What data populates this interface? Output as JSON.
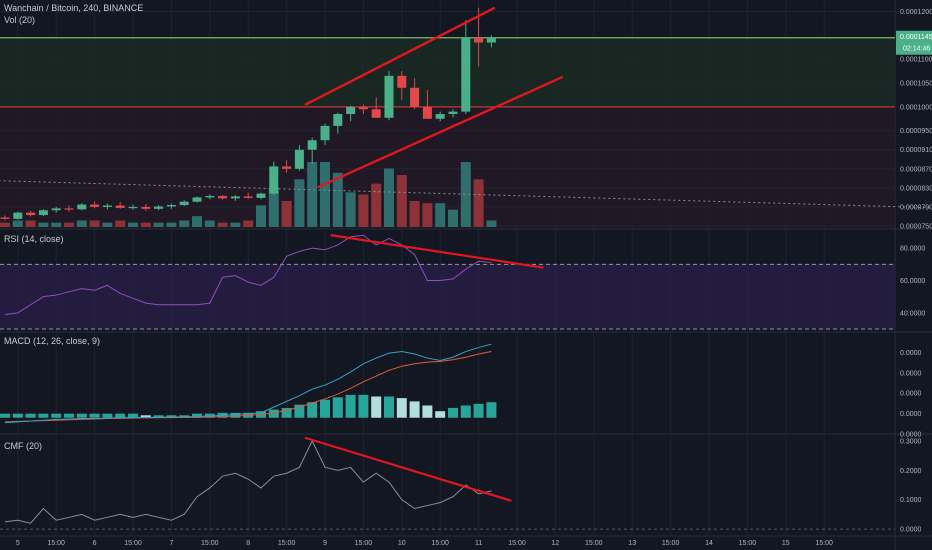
{
  "header": {
    "symbol_title": "Wanchain / Bitcoin, 240, BINANCE",
    "vol_title": "Vol (20)"
  },
  "colors": {
    "background": "#131722",
    "grid": "#1f2430",
    "bull": "#4bb08a",
    "bear": "#e2474b",
    "vol_bull": "#2f6e6c",
    "vol_bear": "#8e3239",
    "trendline": "#e0171d",
    "resistance": "#7cb86a",
    "support": "#c0373d",
    "rsi": "#8e4fbf",
    "rsi_band": "#2a1f4a",
    "macd_line": "#2fa3c7",
    "signal_line": "#e05b3a",
    "hist_pos": "#26a69a",
    "hist_neg_fade": "#b2dfdb",
    "cmf": "#8c8f94",
    "price_tag_bg": "#4bb08a",
    "price_tag_text": "#ffffff"
  },
  "price_axis": {
    "labels": [
      "0.0001200",
      "0.0001100",
      "0.0001050",
      "0.0001000",
      "0.0000950",
      "0.0000910",
      "0.0000870",
      "0.0000830",
      "0.0000790",
      "0.0000750"
    ],
    "current_price": "0.0001145",
    "countdown": "02:14:46"
  },
  "rsi": {
    "title": "RSI (14, close)",
    "axis_labels": [
      "80.0000",
      "60.0000",
      "40.0000"
    ],
    "ylim": [
      30,
      90
    ],
    "bands": [
      70,
      30
    ]
  },
  "macd": {
    "title": "MACD (12, 26, close, 9)",
    "axis_labels": [
      "0.0000",
      "0.0000",
      "0.0000",
      "0.0000",
      "0.0000"
    ],
    "ylim": [
      -1.5,
      10
    ]
  },
  "cmf": {
    "title": "CMF (20)",
    "axis_labels": [
      "0.3000",
      "0.2000",
      "0.1000",
      "0.0000"
    ],
    "ylim": [
      -0.01,
      0.31
    ]
  },
  "time_axis": [
    {
      "label": "5",
      "i": 1
    },
    {
      "label": "15:00",
      "i": 4
    },
    {
      "label": "6",
      "i": 7
    },
    {
      "label": "15:00",
      "i": 10
    },
    {
      "label": "7",
      "i": 13
    },
    {
      "label": "15:00",
      "i": 16
    },
    {
      "label": "8",
      "i": 19
    },
    {
      "label": "15:00",
      "i": 22
    },
    {
      "label": "9",
      "i": 25
    },
    {
      "label": "15:00",
      "i": 28
    },
    {
      "label": "10",
      "i": 31
    },
    {
      "label": "15:00",
      "i": 34
    },
    {
      "label": "11",
      "i": 37
    },
    {
      "label": "15:00",
      "i": 40
    },
    {
      "label": "12",
      "i": 43
    },
    {
      "label": "15:00",
      "i": 46
    },
    {
      "label": "13",
      "i": 49
    },
    {
      "label": "15:00",
      "i": 52
    },
    {
      "label": "14",
      "i": 55
    },
    {
      "label": "15:00",
      "i": 58
    },
    {
      "label": "15",
      "i": 61
    },
    {
      "label": "15:00",
      "i": 64
    }
  ],
  "chart_data": {
    "type": "candlestick",
    "title": "Wanchain / Bitcoin, 240, BINANCE",
    "ylim": [
      7.5e-05,
      0.000122
    ],
    "candles": [
      {
        "o": 7.68e-05,
        "h": 7.72e-05,
        "l": 7.62e-05,
        "c": 7.65e-05,
        "v": 2
      },
      {
        "o": 7.65e-05,
        "h": 7.8e-05,
        "l": 7.63e-05,
        "c": 7.78e-05,
        "v": 3
      },
      {
        "o": 7.78e-05,
        "h": 7.82e-05,
        "l": 7.7e-05,
        "c": 7.73e-05,
        "v": 3
      },
      {
        "o": 7.73e-05,
        "h": 7.85e-05,
        "l": 7.71e-05,
        "c": 7.83e-05,
        "v": 2
      },
      {
        "o": 7.83e-05,
        "h": 7.9e-05,
        "l": 7.78e-05,
        "c": 7.87e-05,
        "v": 2
      },
      {
        "o": 7.87e-05,
        "h": 7.93e-05,
        "l": 7.8e-05,
        "c": 7.85e-05,
        "v": 2
      },
      {
        "o": 7.85e-05,
        "h": 7.98e-05,
        "l": 7.83e-05,
        "c": 7.95e-05,
        "v": 3
      },
      {
        "o": 7.95e-05,
        "h": 8.02e-05,
        "l": 7.87e-05,
        "c": 7.9e-05,
        "v": 3
      },
      {
        "o": 7.9e-05,
        "h": 7.97e-05,
        "l": 7.85e-05,
        "c": 7.93e-05,
        "v": 2
      },
      {
        "o": 7.93e-05,
        "h": 8e-05,
        "l": 7.86e-05,
        "c": 7.88e-05,
        "v": 3
      },
      {
        "o": 7.88e-05,
        "h": 7.95e-05,
        "l": 7.84e-05,
        "c": 7.9e-05,
        "v": 2
      },
      {
        "o": 7.9e-05,
        "h": 7.96e-05,
        "l": 7.82e-05,
        "c": 7.86e-05,
        "v": 2
      },
      {
        "o": 7.86e-05,
        "h": 7.94e-05,
        "l": 7.83e-05,
        "c": 7.91e-05,
        "v": 2
      },
      {
        "o": 7.91e-05,
        "h": 7.97e-05,
        "l": 7.86e-05,
        "c": 7.94e-05,
        "v": 2
      },
      {
        "o": 7.94e-05,
        "h": 8.04e-05,
        "l": 7.92e-05,
        "c": 8.01e-05,
        "v": 3
      },
      {
        "o": 8.01e-05,
        "h": 8.12e-05,
        "l": 7.99e-05,
        "c": 8.1e-05,
        "v": 5
      },
      {
        "o": 8.1e-05,
        "h": 8.16e-05,
        "l": 8.06e-05,
        "c": 8.13e-05,
        "v": 3
      },
      {
        "o": 8.13e-05,
        "h": 8.15e-05,
        "l": 8.05e-05,
        "c": 8.08e-05,
        "v": 2
      },
      {
        "o": 8.08e-05,
        "h": 8.15e-05,
        "l": 8.03e-05,
        "c": 8.12e-05,
        "v": 2
      },
      {
        "o": 8.12e-05,
        "h": 8.2e-05,
        "l": 8.07e-05,
        "c": 8.09e-05,
        "v": 3
      },
      {
        "o": 8.09e-05,
        "h": 8.2e-05,
        "l": 8.06e-05,
        "c": 8.18e-05,
        "v": 10
      },
      {
        "o": 8.18e-05,
        "h": 8.85e-05,
        "l": 8.15e-05,
        "c": 8.75e-05,
        "v": 18
      },
      {
        "o": 8.75e-05,
        "h": 8.88e-05,
        "l": 8.62e-05,
        "c": 8.7e-05,
        "v": 12
      },
      {
        "o": 8.7e-05,
        "h": 9.2e-05,
        "l": 8.66e-05,
        "c": 9.1e-05,
        "v": 22
      },
      {
        "o": 9.1e-05,
        "h": 9.35e-05,
        "l": 8.8e-05,
        "c": 9.3e-05,
        "v": 30
      },
      {
        "o": 9.3e-05,
        "h": 9.65e-05,
        "l": 9.2e-05,
        "c": 9.6e-05,
        "v": 30
      },
      {
        "o": 9.6e-05,
        "h": 9.88e-05,
        "l": 9.44e-05,
        "c": 9.85e-05,
        "v": 25
      },
      {
        "o": 9.85e-05,
        "h": 0.0001002,
        "l": 9.7e-05,
        "c": 0.0001,
        "v": 16
      },
      {
        "o": 0.0001,
        "h": 0.0001005,
        "l": 9.85e-05,
        "c": 9.95e-05,
        "v": 15
      },
      {
        "o": 9.95e-05,
        "h": 0.000102,
        "l": 9.78e-05,
        "c": 9.77e-05,
        "v": 20
      },
      {
        "o": 9.77e-05,
        "h": 0.0001075,
        "l": 9.72e-05,
        "c": 0.0001065,
        "v": 27
      },
      {
        "o": 0.0001065,
        "h": 0.0001075,
        "l": 0.0001015,
        "c": 0.000104,
        "v": 24
      },
      {
        "o": 0.000104,
        "h": 0.000106,
        "l": 9.95e-05,
        "c": 0.0001,
        "v": 12
      },
      {
        "o": 0.0001,
        "h": 0.0001035,
        "l": 9.75e-05,
        "c": 9.75e-05,
        "v": 11
      },
      {
        "o": 9.75e-05,
        "h": 9.9e-05,
        "l": 9.7e-05,
        "c": 9.85e-05,
        "v": 11
      },
      {
        "o": 9.85e-05,
        "h": 9.95e-05,
        "l": 9.78e-05,
        "c": 9.9e-05,
        "v": 8
      },
      {
        "o": 9.9e-05,
        "h": 0.0001182,
        "l": 9.85e-05,
        "c": 0.0001145,
        "v": 30
      },
      {
        "o": 0.0001145,
        "h": 0.0001208,
        "l": 0.0001085,
        "c": 0.0001135,
        "v": 22
      },
      {
        "o": 0.0001135,
        "h": 0.000115,
        "l": 0.0001125,
        "c": 0.0001145,
        "v": 3
      }
    ],
    "volume_ylim": [
      0,
      60
    ],
    "horizontal_levels": [
      {
        "price": 0.0001145,
        "kind": "resistance"
      },
      {
        "price": 0.0001,
        "kind": "support"
      }
    ],
    "price_trendlines": [
      {
        "from": [
          23.5,
          0.0001005
        ],
        "to": [
          38.2,
          0.0001207
        ]
      },
      {
        "from": [
          24.5,
          8.32e-05
        ],
        "to": [
          43.5,
          0.0001062
        ]
      }
    ],
    "long_dotted_line": {
      "from": [
        -0.5,
        8.45e-05
      ],
      "to": [
        73,
        7.88e-05
      ]
    },
    "rsi_values": [
      39,
      40,
      45,
      50,
      51,
      53,
      55,
      54,
      57,
      52,
      49,
      46,
      45,
      45,
      45,
      45,
      46,
      62,
      63,
      59,
      57,
      62,
      75,
      78,
      80,
      79,
      82,
      87,
      88,
      82,
      86,
      82,
      76,
      60,
      60,
      61,
      67,
      72,
      71
    ],
    "rsi_trendline": {
      "from": [
        25.5,
        88
      ],
      "to": [
        42,
        68
      ]
    },
    "macd_line": [
      -0.6,
      -0.5,
      -0.4,
      -0.3,
      -0.2,
      -0.15,
      -0.1,
      -0.1,
      -0.05,
      0.0,
      0.0,
      0.05,
      0.05,
      0.1,
      0.1,
      0.15,
      0.2,
      0.3,
      0.4,
      0.5,
      0.6,
      1.3,
      2.0,
      2.7,
      3.5,
      4.0,
      4.7,
      5.6,
      6.6,
      7.3,
      7.9,
      8.1,
      7.8,
      7.3,
      7.0,
      7.4,
      8.1,
      8.6,
      9.0
    ],
    "signal_line": [
      -0.5,
      -0.45,
      -0.4,
      -0.35,
      -0.3,
      -0.25,
      -0.2,
      -0.15,
      -0.1,
      -0.08,
      -0.05,
      -0.02,
      0.0,
      0.02,
      0.04,
      0.06,
      0.1,
      0.15,
      0.2,
      0.3,
      0.4,
      0.6,
      0.9,
      1.3,
      1.8,
      2.3,
      2.9,
      3.6,
      4.4,
      5.1,
      5.8,
      6.3,
      6.6,
      6.8,
      6.9,
      7.1,
      7.4,
      7.8,
      8.1
    ],
    "macd_hist": [
      0.5,
      0.5,
      0.5,
      0.5,
      0.5,
      0.5,
      0.5,
      0.5,
      0.5,
      0.5,
      0.5,
      0.3,
      0.3,
      0.3,
      0.3,
      0.5,
      0.5,
      0.6,
      0.6,
      0.6,
      0.8,
      1.0,
      1.2,
      1.6,
      1.9,
      2.2,
      2.5,
      2.8,
      2.8,
      2.6,
      2.6,
      2.4,
      2.0,
      1.5,
      0.8,
      1.2,
      1.5,
      1.7,
      1.9
    ],
    "cmf_values": [
      0.025,
      0.03,
      0.02,
      0.07,
      0.03,
      0.04,
      0.05,
      0.03,
      0.04,
      0.05,
      0.04,
      0.05,
      0.04,
      0.03,
      0.05,
      0.11,
      0.14,
      0.18,
      0.19,
      0.17,
      0.14,
      0.18,
      0.19,
      0.21,
      0.3,
      0.21,
      0.2,
      0.21,
      0.16,
      0.19,
      0.16,
      0.1,
      0.07,
      0.08,
      0.09,
      0.11,
      0.15,
      0.12,
      0.13
    ],
    "cmf_trendline": {
      "from": [
        23.5,
        0.31
      ],
      "to": [
        39.5,
        0.097
      ]
    },
    "cmf_ylim": [
      -0.01,
      0.31
    ]
  }
}
